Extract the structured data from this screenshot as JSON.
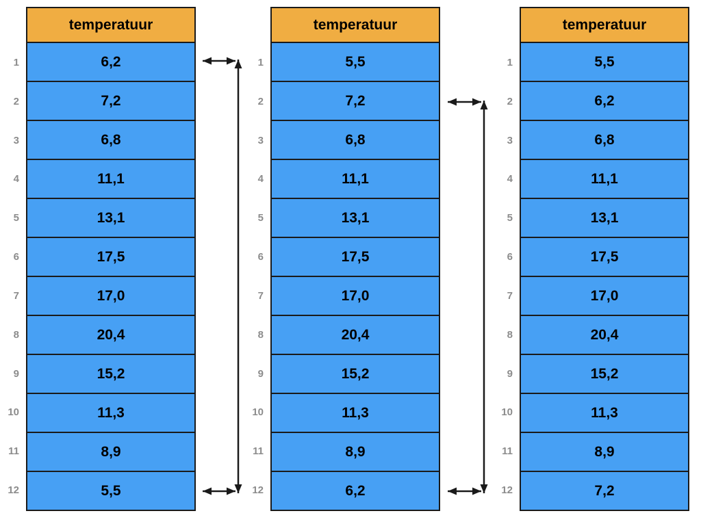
{
  "header_label": "temperatuur",
  "row_numbers": [
    "1",
    "2",
    "3",
    "4",
    "5",
    "6",
    "7",
    "8",
    "9",
    "10",
    "11",
    "12"
  ],
  "tables": [
    {
      "name": "step-1",
      "values": [
        "6,2",
        "7,2",
        "6,8",
        "11,1",
        "13,1",
        "17,5",
        "17,0",
        "20,4",
        "15,2",
        "11,3",
        "8,9",
        "5,5"
      ]
    },
    {
      "name": "step-2",
      "values": [
        "5,5",
        "7,2",
        "6,8",
        "11,1",
        "13,1",
        "17,5",
        "17,0",
        "20,4",
        "15,2",
        "11,3",
        "8,9",
        "6,2"
      ]
    },
    {
      "name": "step-3",
      "values": [
        "5,5",
        "6,2",
        "6,8",
        "11,1",
        "13,1",
        "17,5",
        "17,0",
        "20,4",
        "15,2",
        "11,3",
        "8,9",
        "7,2"
      ]
    }
  ],
  "swaps": [
    {
      "between": "table-1-and-table-2",
      "rows": [
        1,
        12
      ],
      "swapped_values": [
        "6,2",
        "5,5"
      ]
    },
    {
      "between": "table-2-and-table-3",
      "rows": [
        2,
        12
      ],
      "swapped_values": [
        "7,2",
        "6,2"
      ]
    }
  ],
  "colors": {
    "header_bg": "#F0AD42",
    "cell_bg": "#47A0F4",
    "border": "#1A1A1A",
    "row_number_text": "#8C8C8C",
    "value_text": "#000000",
    "arrow": "#1A1A1A"
  }
}
